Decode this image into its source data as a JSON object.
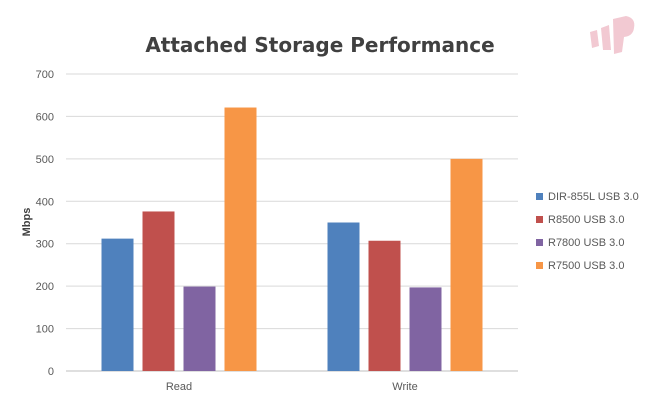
{
  "chart_data": {
    "type": "bar",
    "title": "Attached Storage Performance",
    "xlabel": "",
    "ylabel": "Mbps",
    "categories": [
      "Read",
      "Write"
    ],
    "ylim": [
      0,
      700
    ],
    "yticks": [
      0,
      100,
      200,
      300,
      400,
      500,
      600,
      700
    ],
    "grid": true,
    "legend_position": "right",
    "series": [
      {
        "name": "DIR-855L USB 3.0",
        "color": "#4f81bd",
        "values": [
          312,
          350
        ]
      },
      {
        "name": "R8500 USB 3.0",
        "color": "#c0504d",
        "values": [
          376,
          307
        ]
      },
      {
        "name": "R7800 USB 3.0",
        "color": "#8064a2",
        "values": [
          199,
          197
        ]
      },
      {
        "name": "R7500 USB 3.0",
        "color": "#f79646",
        "values": [
          621,
          500
        ]
      }
    ]
  },
  "logo": {
    "color": "#f2c9d2",
    "icon": "brand-logo-icon"
  }
}
